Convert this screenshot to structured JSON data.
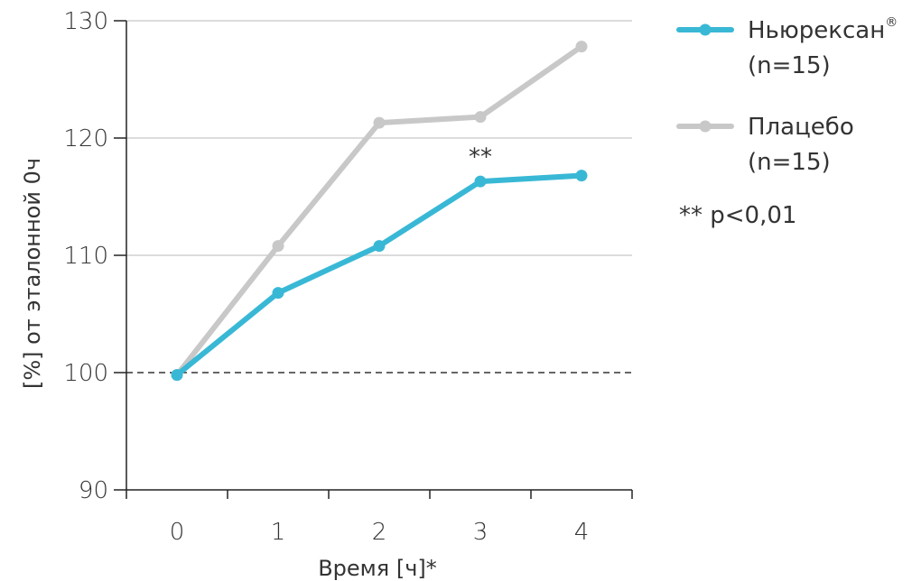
{
  "chart_data": {
    "type": "line",
    "x": [
      0,
      1,
      2,
      3,
      4
    ],
    "xticks": [
      "0",
      "1",
      "2",
      "3",
      "4"
    ],
    "xlabel": "Время [ч]*",
    "ylabel": "[%] от эталонной 0ч",
    "ylim": [
      90,
      130
    ],
    "yticks": [
      90,
      100,
      110,
      120,
      130
    ],
    "grid": true,
    "reference_line": {
      "y": 100,
      "style": "dashed"
    },
    "series": [
      {
        "name": "Ньюрексан",
        "name_suffix": "®",
        "name_line2": "(n=15)",
        "color": "#39b8d6",
        "values": [
          99.8,
          106.8,
          110.8,
          116.3,
          116.8
        ]
      },
      {
        "name": "Плацебо",
        "name_suffix": "",
        "name_line2": "(n=15)",
        "color": "#c8c8c8",
        "values": [
          99.8,
          110.8,
          121.3,
          121.8,
          127.8
        ]
      }
    ],
    "annotations": [
      {
        "text": "**",
        "x": 3,
        "y": 118.8
      }
    ],
    "legend_position": "right",
    "footnote": "** p<0,01"
  }
}
